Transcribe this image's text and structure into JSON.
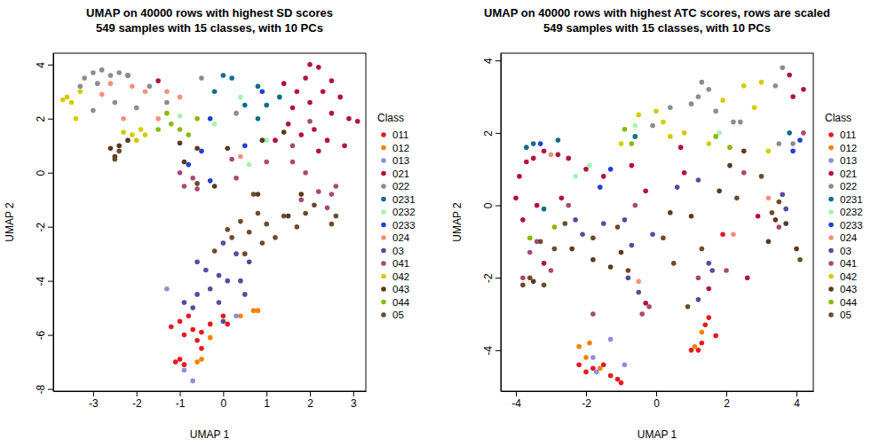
{
  "chart_data": [
    {
      "type": "scatter",
      "title": "UMAP on 40000 rows with highest SD scores",
      "subtitle": "549 samples with 15 classes, with 10 PCs",
      "xlabel": "UMAP 1",
      "ylabel": "UMAP 2",
      "legend_title": "Class",
      "legend": "right",
      "marker": "circle",
      "xlim": [
        -3.92,
        3.29
      ],
      "ylim": [
        -8.08,
        4.42
      ],
      "xticks": [
        -3,
        -2,
        -1,
        0,
        1,
        2,
        3
      ],
      "yticks": [
        -8,
        -6,
        -4,
        -2,
        0,
        2,
        4
      ],
      "series": [
        {
          "name": "011",
          "color": "#E41A1C",
          "x": [
            -1.0,
            -0.8,
            -0.9,
            -1.1,
            -0.9,
            -0.6,
            -0.5,
            -0.3,
            0.1,
            -1.2,
            -0.7,
            -0.5,
            0.0,
            -1.0
          ],
          "values": [
            -5.5,
            -5.3,
            -6.0,
            -7.0,
            -7.1,
            -6.2,
            -6.5,
            -5.6,
            -5.6,
            -5.7,
            -5.8,
            -5.9,
            -5.3,
            -6.9
          ]
        },
        {
          "name": "012",
          "color": "#FF7F00",
          "x": [
            0.7,
            0.4,
            -0.5,
            -0.3,
            -0.6,
            0.8
          ],
          "values": [
            -5.1,
            -5.3,
            -6.9,
            -6.1,
            -7.0,
            -5.1
          ]
        },
        {
          "name": "013",
          "color": "#8A8FE0",
          "x": [
            -0.7,
            -0.9,
            -1.3,
            0.3
          ],
          "values": [
            -7.7,
            -7.3,
            -4.3,
            -5.3
          ]
        },
        {
          "name": "021",
          "color": "#B2123F",
          "x": [
            2.0,
            2.2,
            1.9,
            2.5,
            2.3,
            2.7,
            2.0,
            1.6,
            2.5,
            2.9,
            3.1,
            2.1,
            1.8,
            2.4,
            1.5,
            2.8,
            1.2,
            2.2,
            1.7,
            1.4,
            -1.5,
            -2.2
          ],
          "values": [
            4.0,
            3.9,
            3.5,
            3.4,
            3.0,
            2.8,
            2.6,
            2.4,
            2.2,
            2.0,
            1.9,
            1.6,
            1.4,
            1.2,
            1.8,
            1.0,
            1.2,
            0.8,
            3.0,
            3.3,
            3.4,
            3.6
          ]
        },
        {
          "name": "022",
          "color": "#8C8C8C",
          "x": [
            -3.2,
            -3.0,
            -2.8,
            -2.6,
            -2.4,
            -3.3,
            -2.9,
            -2.2,
            -1.7,
            -2.5,
            -2.0,
            -0.5,
            -1.3,
            0.3,
            -3.0
          ],
          "values": [
            3.5,
            3.7,
            3.8,
            3.6,
            3.7,
            3.2,
            3.3,
            3.6,
            3.2,
            2.6,
            2.4,
            3.5,
            2.6,
            2.2,
            2.3
          ]
        },
        {
          "name": "0231",
          "color": "#0B6E8F",
          "x": [
            0.2,
            0.0,
            0.8,
            0.5,
            1.0,
            -0.2,
            1.3,
            0.8
          ],
          "values": [
            3.5,
            3.6,
            3.2,
            2.5,
            2.5,
            3.0,
            2.8,
            2.0
          ]
        },
        {
          "name": "0232",
          "color": "#A3F5B0",
          "x": [
            -0.2,
            1.0,
            0.6,
            -1.0,
            0.4
          ],
          "values": [
            1.8,
            1.2,
            0.3,
            2.1,
            2.8
          ]
        },
        {
          "name": "0233",
          "color": "#1F3FD6",
          "x": [
            -0.8,
            -0.3,
            -0.5,
            0.5,
            -0.3,
            0.9
          ],
          "values": [
            0.3,
            2.0,
            0.8,
            1.0,
            -0.3,
            3.0
          ]
        },
        {
          "name": "024",
          "color": "#F7907A",
          "x": [
            -2.6,
            -2.3,
            -1.8,
            -1.5,
            -2.1,
            -2.8,
            -1.3,
            -1.0,
            0.4
          ],
          "values": [
            3.3,
            2.0,
            3.0,
            2.0,
            3.2,
            2.9,
            3.0,
            2.8,
            0.6
          ]
        },
        {
          "name": "03",
          "color": "#5A4A9E",
          "x": [
            -0.4,
            -0.6,
            -0.1,
            0.1,
            -0.3,
            -0.6,
            -0.1,
            -0.9,
            0.5,
            0.6,
            0.3,
            0.0,
            -0.7,
            0.4,
            0.0
          ],
          "values": [
            -3.6,
            -3.3,
            -3.8,
            -4.0,
            -4.3,
            -4.5,
            -4.8,
            -4.8,
            -4.5,
            -3.3,
            -3.0,
            -2.6,
            -5.0,
            -4.0,
            -5.5
          ]
        },
        {
          "name": "041",
          "color": "#A64A75",
          "x": [
            -0.7,
            -1.0,
            -0.9,
            -0.6,
            0.2,
            1.0,
            1.6,
            1.9,
            2.2,
            2.5,
            2.4,
            1.8,
            2.0,
            1.6,
            0.3,
            2.6
          ],
          "values": [
            -0.2,
            0.0,
            -0.5,
            -0.6,
            0.5,
            0.4,
            0.4,
            0.0,
            -0.7,
            -0.8,
            -1.3,
            -1.0,
            1.9,
            1.0,
            -0.2,
            -0.5
          ]
        },
        {
          "name": "042",
          "color": "#D2CC00",
          "x": [
            -3.6,
            -3.5,
            -3.3,
            -3.4,
            -2.1,
            -1.9,
            -2.3,
            -1.8,
            -2.0,
            -3.7
          ],
          "values": [
            2.8,
            2.6,
            3.0,
            2.0,
            1.4,
            1.6,
            1.5,
            1.4,
            1.2,
            2.7
          ]
        },
        {
          "name": "043",
          "color": "#5A3A22",
          "x": [
            -2.4,
            -2.5,
            -2.2,
            -2.6,
            -1.0,
            -0.6,
            -0.9,
            0.1,
            -0.2,
            0.8,
            1.5,
            1.4,
            1.8,
            0.9
          ],
          "values": [
            1.0,
            0.6,
            1.2,
            0.9,
            1.1,
            0.9,
            0.4,
            0.9,
            -0.5,
            -0.8,
            -1.6,
            1.5,
            -0.8,
            1.2
          ]
        },
        {
          "name": "044",
          "color": "#8AB80A",
          "x": [
            -1.2,
            -1.0,
            -1.3,
            -0.8,
            -1.5,
            -0.6
          ],
          "values": [
            1.8,
            1.6,
            2.2,
            1.4,
            1.6,
            2.0
          ]
        },
        {
          "name": "05",
          "color": "#6E4B2A",
          "x": [
            0.8,
            0.4,
            0.1,
            0.6,
            1.0,
            1.4,
            1.7,
            1.9,
            2.1,
            2.6,
            2.5,
            0.9,
            0.5,
            -0.2,
            0.2,
            -2.5,
            -2.4,
            1.2,
            -0.6,
            0.7
          ],
          "values": [
            -1.5,
            -1.8,
            -2.1,
            -2.2,
            -1.9,
            -1.6,
            -2.0,
            -1.5,
            -1.2,
            -1.6,
            -1.9,
            -2.6,
            -3.0,
            -2.9,
            -2.4,
            0.5,
            0.8,
            -2.4,
            -0.4,
            -0.8
          ]
        }
      ]
    },
    {
      "type": "scatter",
      "title": "UMAP on 40000 rows with highest ATC scores, rows are scaled",
      "subtitle": "549 samples with 15 classes, with 10 PCs",
      "xlabel": "UMAP 1",
      "ylabel": "UMAP 2",
      "legend_title": "Class",
      "legend": "right",
      "marker": "circle",
      "xlim": [
        -4.43,
        4.48
      ],
      "ylim": [
        -5.13,
        4.2
      ],
      "xticks": [
        -4,
        -2,
        0,
        2,
        4
      ],
      "yticks": [
        -4,
        -2,
        0,
        2,
        4
      ],
      "series": [
        {
          "name": "011",
          "color": "#E41A1C",
          "x": [
            -2.0,
            -1.8,
            -1.3,
            -1.1,
            -2.2,
            -1.5,
            1.4,
            1.5,
            1.3,
            1.2,
            1.0,
            1.7,
            1.9,
            -1.0
          ],
          "values": [
            -4.6,
            -4.5,
            -4.7,
            -4.8,
            -4.4,
            -4.4,
            -3.3,
            -3.1,
            -3.8,
            -4.0,
            -4.0,
            -3.6,
            -0.8,
            -4.9
          ]
        },
        {
          "name": "012",
          "color": "#FF7F00",
          "x": [
            -2.2,
            -2.0,
            -1.9,
            1.1,
            1.3,
            -1.6
          ],
          "values": [
            -3.9,
            -4.2,
            -3.8,
            -3.9,
            -3.5,
            -4.5
          ]
        },
        {
          "name": "013",
          "color": "#8A8FE0",
          "x": [
            -1.7,
            -1.8,
            -0.9,
            -1.3
          ],
          "values": [
            -4.6,
            -4.2,
            -4.4,
            -3.7
          ]
        },
        {
          "name": "021",
          "color": "#B2123F",
          "x": [
            -4.0,
            -3.9,
            -3.7,
            -3.5,
            -3.2,
            -2.8,
            -2.5,
            -2.0,
            -1.5,
            -3.8,
            -3.4,
            -2.7,
            -0.7,
            -0.3,
            0.7,
            0.8,
            3.8,
            4.2,
            3.9,
            2.6,
            1.5,
            -0.3,
            -3.2,
            2.9
          ],
          "values": [
            0.2,
            0.8,
            1.2,
            1.3,
            1.5,
            1.4,
            1.3,
            1.0,
            0.8,
            -0.4,
            0.0,
            0.2,
            1.1,
            0.4,
            1.6,
            0.9,
            3.6,
            3.2,
            3.0,
            -2.0,
            -2.3,
            -2.7,
            -1.6,
            -0.3
          ]
        },
        {
          "name": "022",
          "color": "#8C8C8C",
          "x": [
            1.3,
            1.2,
            1.5,
            1.7,
            2.2,
            2.4,
            1.0,
            3.6,
            3.4,
            3.5,
            3.9,
            0.4,
            -0.1
          ],
          "values": [
            3.4,
            3.0,
            3.2,
            2.6,
            2.3,
            2.3,
            2.8,
            3.8,
            3.3,
            1.7,
            1.7,
            2.7,
            2.2
          ]
        },
        {
          "name": "0231",
          "color": "#0B6E8F",
          "x": [
            -3.7,
            -3.5,
            -2.8,
            3.8,
            -3.2,
            -0.6
          ],
          "values": [
            1.6,
            1.7,
            1.8,
            2.0,
            -0.1,
            1.9
          ]
        },
        {
          "name": "0232",
          "color": "#A3F5B0",
          "x": [
            -2.3,
            -1.9,
            1.8,
            -0.6
          ],
          "values": [
            0.8,
            1.1,
            2.0,
            2.2
          ]
        },
        {
          "name": "0233",
          "color": "#1F3FD6",
          "x": [
            4.1,
            3.9,
            -1.6,
            -1.3,
            -3.3
          ],
          "values": [
            1.8,
            1.5,
            0.5,
            1.0,
            1.7
          ]
        },
        {
          "name": "024",
          "color": "#F7907A",
          "x": [
            -3.0,
            -0.5,
            2.2,
            3.2
          ],
          "values": [
            1.4,
            -2.1,
            -0.8,
            0.2
          ]
        },
        {
          "name": "03",
          "color": "#5A4A9E",
          "x": [
            -0.7,
            -0.9,
            -2.3,
            -2.1,
            -0.8,
            -0.5,
            1.2,
            0.6,
            1.5,
            1.6,
            1.2,
            -1.5,
            3.7,
            3.6,
            -0.1
          ],
          "values": [
            -1.1,
            -0.4,
            -0.4,
            -0.8,
            -2.0,
            -2.4,
            0.7,
            0.5,
            -1.6,
            -1.8,
            -2.6,
            -0.5,
            -0.1,
            0.3,
            -0.8
          ]
        },
        {
          "name": "041",
          "color": "#A64A75",
          "x": [
            -3.4,
            -3.6,
            -3.0,
            -3.8,
            -2.5,
            -1.8,
            -0.2,
            -0.4,
            1.2,
            2.0,
            3.5,
            2.5,
            -0.6,
            4.2
          ],
          "values": [
            -1.0,
            -1.3,
            -1.8,
            -2.0,
            0.0,
            -3.0,
            -2.8,
            -3.0,
            -2.0,
            -1.8,
            -0.6,
            0.9,
            0.0,
            2.0
          ]
        },
        {
          "name": "042",
          "color": "#D2CC00",
          "x": [
            0.0,
            0.2,
            0.8,
            1.9,
            2.5,
            3.0,
            2.8,
            1.5,
            -1.0,
            -0.5,
            3.2,
            0.4
          ],
          "values": [
            2.6,
            2.3,
            2.0,
            2.9,
            3.3,
            3.4,
            2.7,
            1.7,
            1.7,
            2.5,
            1.5,
            1.9
          ]
        },
        {
          "name": "043",
          "color": "#5A3A22",
          "x": [
            3.7,
            3.4,
            4.0,
            3.2,
            2.1,
            2.5,
            -1.8,
            -1.3,
            -1.0,
            -2.4,
            1.0,
            0.4,
            -3.5,
            1.8
          ],
          "values": [
            -0.5,
            -0.4,
            -1.2,
            -1.0,
            1.1,
            1.5,
            -1.5,
            -1.7,
            -1.3,
            -1.2,
            -0.3,
            -0.2,
            -2.1,
            0.4
          ]
        },
        {
          "name": "044",
          "color": "#8AB80A",
          "x": [
            -0.9,
            -0.7,
            -3.6,
            1.7,
            2.1,
            -2.9
          ],
          "values": [
            2.1,
            1.7,
            -0.9,
            1.9,
            1.6,
            -0.6
          ]
        },
        {
          "name": "05",
          "color": "#6E4B2A",
          "x": [
            -3.8,
            -3.6,
            -3.3,
            -2.6,
            -2.9,
            -1.8,
            -1.1,
            -0.8,
            0.2,
            0.5,
            1.3,
            3.5,
            3.3,
            4.1,
            2.3,
            3.0,
            -3.2,
            0.9
          ],
          "values": [
            -2.2,
            -2.0,
            -1.0,
            -0.5,
            -1.2,
            -0.9,
            -0.6,
            -1.8,
            -0.9,
            -1.6,
            -1.2,
            0.1,
            -0.2,
            -1.5,
            0.2,
            0.8,
            -2.2,
            -2.8
          ]
        }
      ]
    }
  ]
}
